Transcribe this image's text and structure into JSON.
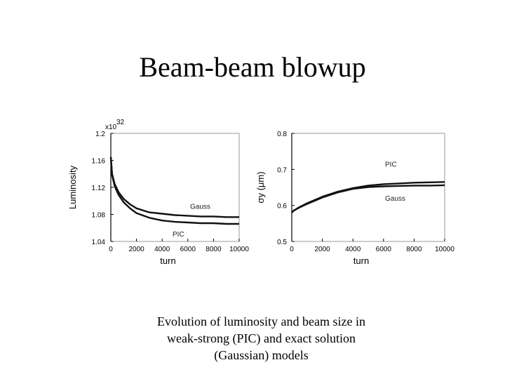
{
  "slide": {
    "title": "Beam-beam blowup",
    "caption": [
      "Evolution of luminosity and beam size in",
      "weak-strong (PIC) and exact solution",
      "(Gaussian) models"
    ]
  },
  "chart_data": [
    {
      "type": "line",
      "title": "",
      "xlabel": "turn",
      "ylabel": "Luminosity",
      "multiplier": "x10",
      "multiplier_exp": "32",
      "xlim": [
        0,
        10000
      ],
      "ylim": [
        1.04,
        1.2
      ],
      "x_ticks": [
        0,
        2000,
        4000,
        6000,
        8000,
        10000
      ],
      "y_ticks": [
        "1.04",
        "1.08",
        "1.12",
        "1.16",
        "1.2"
      ],
      "series": [
        {
          "name": "Gauss",
          "x": [
            0,
            100,
            300,
            600,
            1000,
            1500,
            2000,
            3000,
            4000,
            5000,
            6000,
            7000,
            8000,
            9000,
            10000
          ],
          "y": [
            1.165,
            1.14,
            1.125,
            1.113,
            1.103,
            1.095,
            1.089,
            1.083,
            1.081,
            1.079,
            1.078,
            1.077,
            1.077,
            1.076,
            1.076
          ]
        },
        {
          "name": "PIC",
          "x": [
            0,
            100,
            300,
            600,
            1000,
            1500,
            2000,
            3000,
            4000,
            5000,
            6000,
            7000,
            8000,
            9000,
            10000
          ],
          "y": [
            1.165,
            1.138,
            1.122,
            1.109,
            1.098,
            1.089,
            1.082,
            1.075,
            1.071,
            1.069,
            1.068,
            1.067,
            1.067,
            1.066,
            1.066
          ]
        }
      ]
    },
    {
      "type": "line",
      "title": "",
      "xlabel": "turn",
      "ylabel": "σy (μm)",
      "xlim": [
        0,
        10000
      ],
      "ylim": [
        0.5,
        0.8
      ],
      "x_ticks": [
        0,
        2000,
        4000,
        6000,
        8000,
        10000
      ],
      "y_ticks": [
        "0.5",
        "0.6",
        "0.7",
        "0.8"
      ],
      "series": [
        {
          "name": "PIC",
          "x": [
            0,
            100,
            500,
            1000,
            2000,
            3000,
            4000,
            5000,
            6000,
            7000,
            8000,
            9000,
            10000
          ],
          "y": [
            0.58,
            0.585,
            0.595,
            0.606,
            0.624,
            0.638,
            0.648,
            0.655,
            0.659,
            0.661,
            0.663,
            0.664,
            0.665
          ]
        },
        {
          "name": "Gauss",
          "x": [
            0,
            100,
            500,
            1000,
            2000,
            3000,
            4000,
            5000,
            6000,
            7000,
            8000,
            9000,
            10000
          ],
          "y": [
            0.58,
            0.585,
            0.594,
            0.604,
            0.622,
            0.636,
            0.646,
            0.651,
            0.653,
            0.654,
            0.655,
            0.655,
            0.656
          ]
        }
      ]
    }
  ]
}
